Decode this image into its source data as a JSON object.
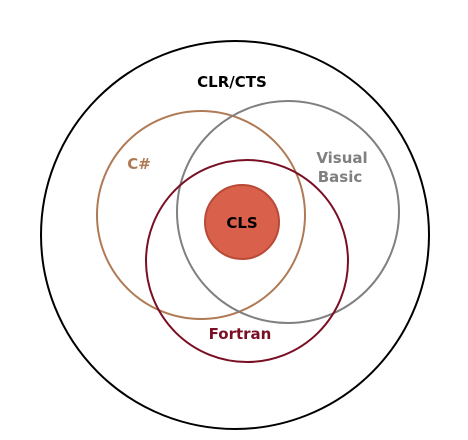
{
  "diagram": {
    "outer": {
      "label": "CLR/CTS",
      "color": "#000000"
    },
    "csharp": {
      "label": "C#",
      "color": "#B07A55"
    },
    "visual_basic": {
      "label_line1": "Visual",
      "label_line2": "Basic",
      "color": "#808080"
    },
    "fortran": {
      "label": "Fortran",
      "color": "#7A0F24"
    },
    "cls": {
      "label": "CLS",
      "fill": "#D9604A",
      "stroke": "#B84A37",
      "text_color": "#000000"
    }
  }
}
